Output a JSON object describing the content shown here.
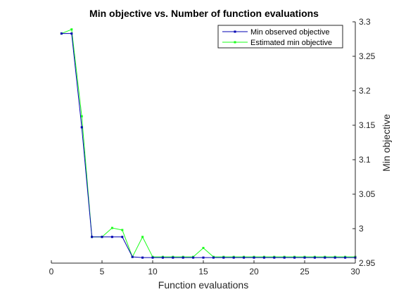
{
  "chart_data": {
    "type": "line",
    "title": "Min objective vs. Number of function evaluations",
    "xlabel": "Function evaluations",
    "ylabel": "Min objective",
    "xlim": [
      0,
      30
    ],
    "ylim": [
      2.95,
      3.3
    ],
    "x_ticks": [
      0,
      5,
      10,
      15,
      20,
      25,
      30
    ],
    "y_ticks": [
      2.95,
      3.0,
      3.05,
      3.1,
      3.15,
      3.2,
      3.25,
      3.3
    ],
    "x_tick_labels": [
      "0",
      "5",
      "10",
      "15",
      "20",
      "25",
      "30"
    ],
    "y_tick_labels": [
      "2.95",
      "3",
      "3.05",
      "3.1",
      "3.15",
      "3.2",
      "3.25",
      "3.3"
    ],
    "y_axis_side": "right",
    "grid": false,
    "legend_position": "top-right",
    "x": [
      1,
      2,
      3,
      4,
      5,
      6,
      7,
      8,
      9,
      10,
      11,
      12,
      13,
      14,
      15,
      16,
      17,
      18,
      19,
      20,
      21,
      22,
      23,
      24,
      25,
      26,
      27,
      28,
      29,
      30
    ],
    "series": [
      {
        "name": "Min observed objective",
        "color": "#0000b3",
        "values": [
          3.283,
          3.283,
          3.147,
          2.988,
          2.988,
          2.988,
          2.988,
          2.959,
          2.958,
          2.958,
          2.958,
          2.958,
          2.958,
          2.958,
          2.958,
          2.958,
          2.958,
          2.958,
          2.958,
          2.958,
          2.958,
          2.958,
          2.958,
          2.958,
          2.958,
          2.958,
          2.958,
          2.958,
          2.958,
          2.958
        ]
      },
      {
        "name": "Estimated min objective",
        "color": "#1aff1a",
        "values": [
          3.283,
          3.289,
          3.163,
          2.988,
          2.988,
          3.001,
          2.998,
          2.959,
          2.988,
          2.959,
          2.959,
          2.959,
          2.959,
          2.959,
          2.972,
          2.959,
          2.959,
          2.959,
          2.959,
          2.959,
          2.959,
          2.959,
          2.959,
          2.959,
          2.959,
          2.959,
          2.959,
          2.959,
          2.959,
          2.959
        ]
      }
    ]
  }
}
